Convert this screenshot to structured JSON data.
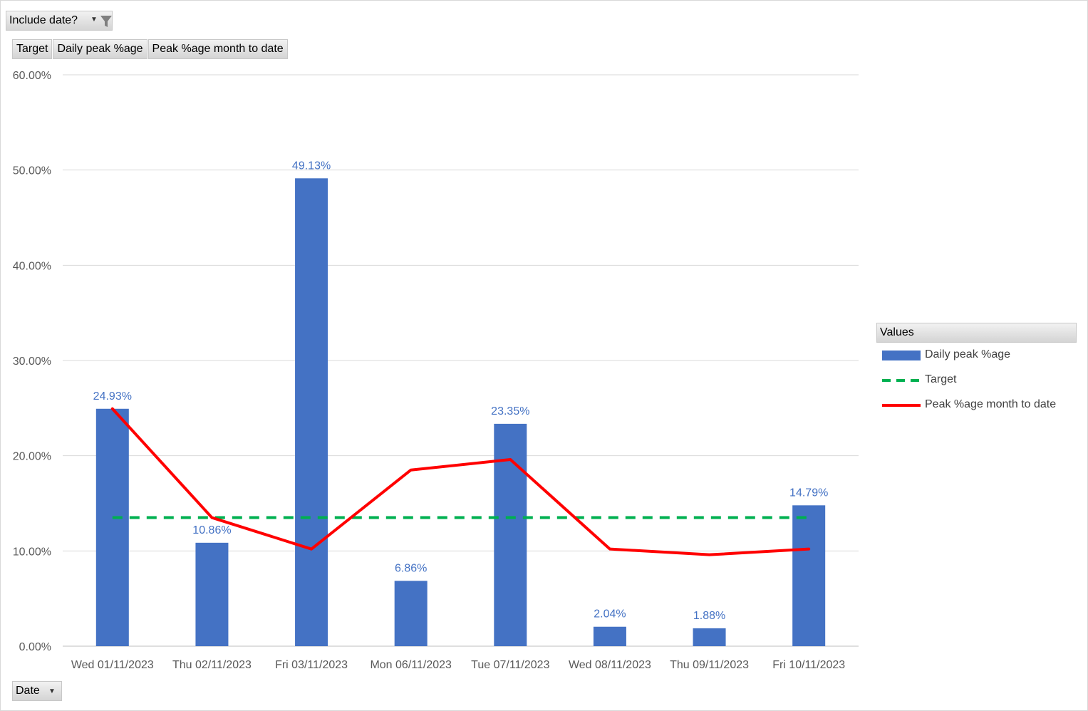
{
  "filter": {
    "label": "Include date?"
  },
  "value_fields": [
    "Target",
    "Daily peak %age",
    "Peak %age month  to date"
  ],
  "axis_field": {
    "label": "Date"
  },
  "legend": {
    "title": "Values",
    "items": [
      {
        "label": "Daily peak %age",
        "style": "bar",
        "color": "#4472c4"
      },
      {
        "label": "Target",
        "style": "dashed",
        "color": "#00b050"
      },
      {
        "label": "Peak %age month  to date",
        "style": "line",
        "color": "#ff0000"
      }
    ]
  },
  "chart_data": {
    "type": "bar",
    "categories": [
      "Wed 01/11/2023",
      "Thu 02/11/2023",
      "Fri 03/11/2023",
      "Mon 06/11/2023",
      "Tue 07/11/2023",
      "Wed 08/11/2023",
      "Thu 09/11/2023",
      "Fri 10/11/2023"
    ],
    "series": [
      {
        "name": "Daily peak %age",
        "type": "bar",
        "color": "#4472c4",
        "values": [
          24.93,
          10.86,
          49.13,
          6.86,
          23.35,
          2.04,
          1.88,
          14.79
        ],
        "data_labels": [
          "24.93%",
          "10.86%",
          "49.13%",
          "6.86%",
          "23.35%",
          "2.04%",
          "1.88%",
          "14.79%"
        ]
      },
      {
        "name": "Target",
        "type": "line",
        "dashed": true,
        "color": "#00b050",
        "values": [
          13.5,
          13.5,
          13.5,
          13.5,
          13.5,
          13.5,
          13.5,
          13.5
        ]
      },
      {
        "name": "Peak %age month  to date",
        "type": "line",
        "color": "#ff0000",
        "values": [
          24.93,
          13.5,
          10.2,
          18.5,
          19.6,
          10.2,
          9.6,
          10.2
        ]
      }
    ],
    "ylim": [
      0,
      60
    ],
    "yticks": [
      "0.00%",
      "10.00%",
      "20.00%",
      "30.00%",
      "40.00%",
      "50.00%",
      "60.00%"
    ],
    "grid": true,
    "legend_position": "right"
  }
}
